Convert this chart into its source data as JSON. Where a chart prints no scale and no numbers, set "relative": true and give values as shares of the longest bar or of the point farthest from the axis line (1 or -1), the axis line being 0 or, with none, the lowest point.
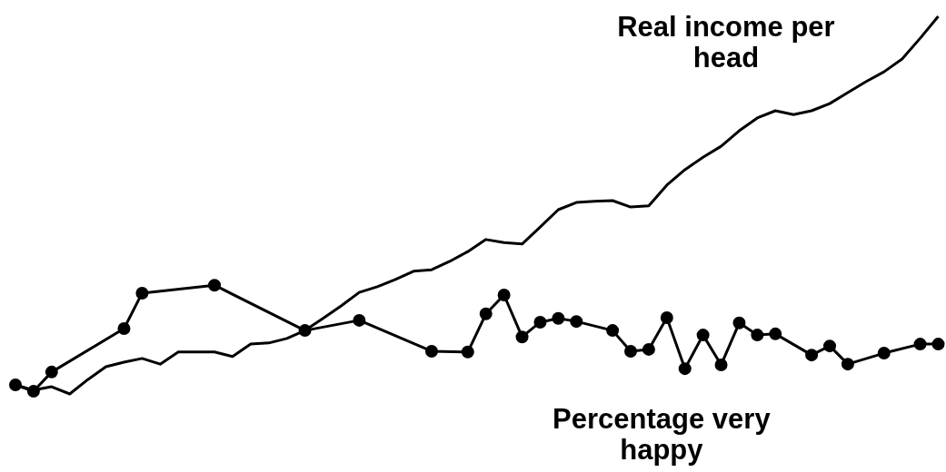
{
  "chart_data": {
    "type": "line",
    "relative": true,
    "legend": false,
    "categories": [
      null,
      null,
      null,
      null,
      null,
      null,
      null,
      null,
      null,
      null,
      null,
      null,
      null,
      null,
      null,
      null,
      null,
      null,
      null,
      null,
      null,
      null,
      null,
      null,
      null,
      null,
      null,
      null,
      null,
      null,
      null,
      null,
      null,
      null,
      null,
      null,
      null,
      null,
      null,
      null,
      null,
      null,
      null,
      null,
      null,
      null,
      null,
      null,
      null,
      null,
      null,
      null
    ],
    "series": [
      {
        "name": "Real income per head",
        "color": "#000000",
        "marker": "none",
        "values": [
          0.024,
          0.01,
          0.019,
          0,
          0.038,
          0.072,
          0.084,
          0.094,
          0.079,
          0.111,
          0.111,
          0.111,
          0.099,
          0.132,
          0.135,
          0.147,
          0.168,
          0.2,
          0.233,
          0.269,
          0.284,
          0.303,
          0.325,
          0.329,
          0.351,
          0.377,
          0.409,
          0.401,
          0.397,
          0.442,
          0.488,
          0.507,
          0.51,
          0.512,
          0.495,
          0.498,
          0.553,
          0.594,
          0.627,
          0.656,
          0.697,
          0.731,
          0.75,
          0.74,
          0.75,
          0.769,
          0.798,
          0.827,
          0.853,
          0.887,
          0.942,
          1
        ]
      },
      {
        "name": "Percentage very happy",
        "color": "#000000",
        "marker": "circle",
        "values": [
          0.024,
          0.007,
          0.058,
          null,
          null,
          null,
          0.173,
          0.267,
          null,
          null,
          null,
          0.288,
          null,
          null,
          null,
          null,
          0.168,
          null,
          null,
          0.195,
          null,
          null,
          null,
          0.113,
          null,
          0.111,
          0.212,
          0.262,
          0.151,
          0.19,
          0.2,
          0.192,
          null,
          0.168,
          0.113,
          0.118,
          0.202,
          0.067,
          0.156,
          0.077,
          0.188,
          0.156,
          0.159,
          null,
          0.103,
          0.127,
          0.079,
          null,
          0.108,
          null,
          0.132,
          0.132
        ]
      }
    ]
  }
}
